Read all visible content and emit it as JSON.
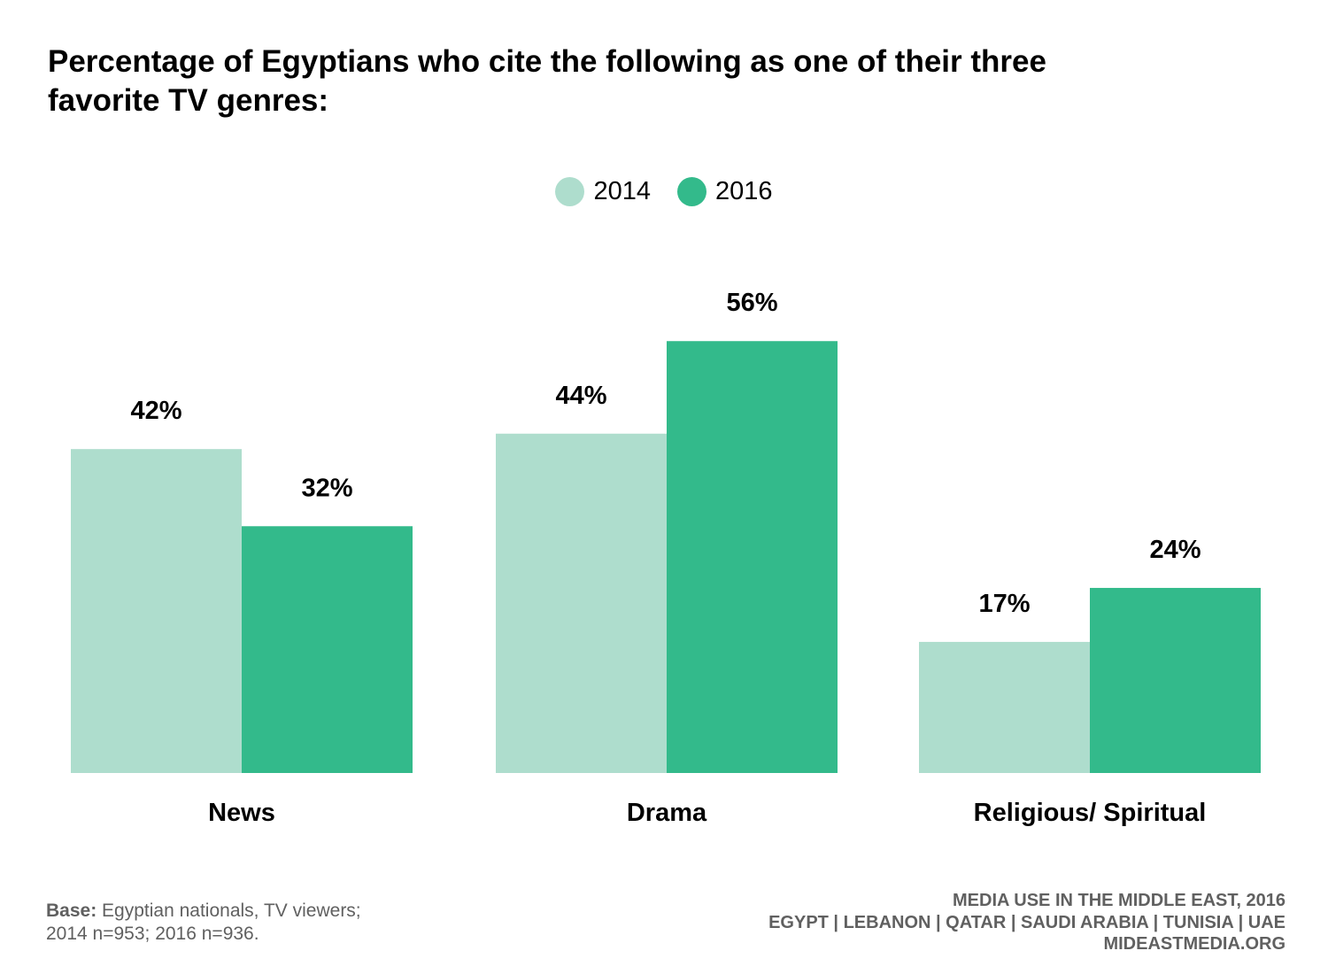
{
  "title": "Percentage of Egyptians who cite the following as one of their three favorite TV genres:",
  "legend": [
    {
      "label": "2014",
      "color": "#aeddcd"
    },
    {
      "label": "2016",
      "color": "#33ba8b"
    }
  ],
  "chart_data": {
    "type": "bar",
    "title": "Percentage of Egyptians who cite the following as one of their three favorite TV genres:",
    "categories": [
      "News",
      "Drama",
      "Religious/ Spiritual"
    ],
    "series": [
      {
        "name": "2014",
        "values": [
          42,
          44,
          17
        ],
        "labels": [
          "42%",
          "44%",
          "17%"
        ],
        "color": "#aeddcd"
      },
      {
        "name": "2016",
        "values": [
          32,
          56,
          24
        ],
        "labels": [
          "32%",
          "56%",
          "24%"
        ],
        "color": "#33ba8b"
      }
    ],
    "ylim": [
      0,
      56
    ],
    "grid": false,
    "legend_position": "top-center",
    "xlabel": "",
    "ylabel": ""
  },
  "footer": {
    "base_label": "Base:",
    "base_text": "Egyptian nationals, TV viewers;",
    "base_text_2": "2014 n=953; 2016 n=936.",
    "source_line_1": "MEDIA USE IN THE MIDDLE EAST, 2016",
    "source_line_2": "EGYPT | LEBANON | QATAR | SAUDI ARABIA | TUNISIA | UAE",
    "source_line_3": "MIDEASTMEDIA.ORG"
  }
}
